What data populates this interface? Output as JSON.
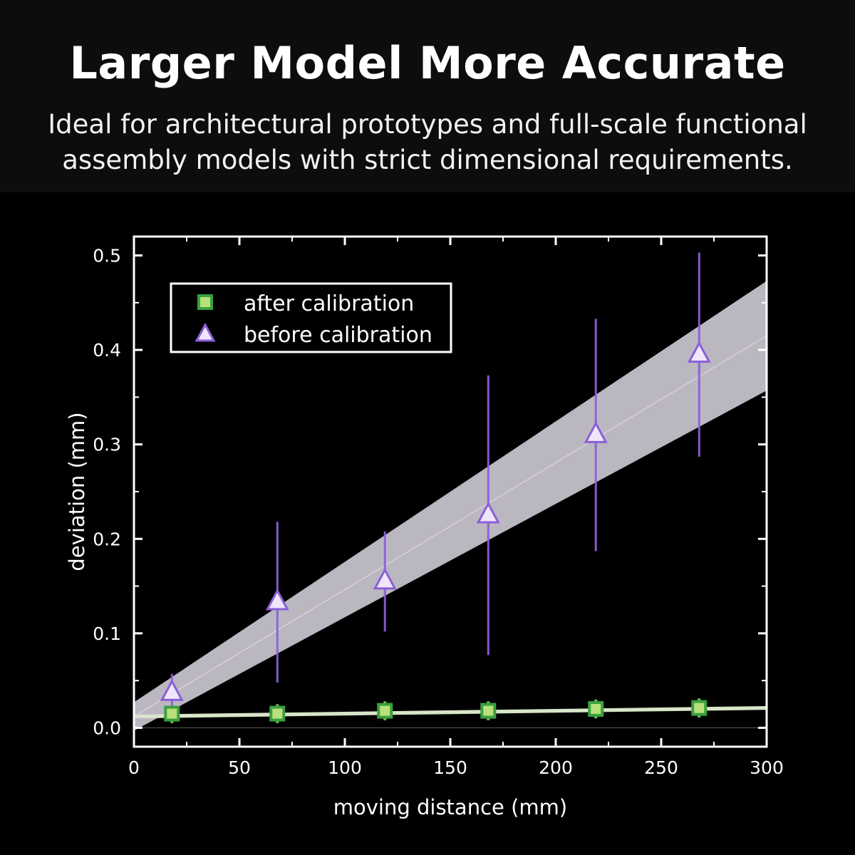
{
  "header": {
    "title": "Larger Model More Accurate",
    "subtitle_line1": "Ideal for architectural prototypes and full-scale functional",
    "subtitle_line2": "assembly models with strict dimensional requirements."
  },
  "chart_data": {
    "type": "scatter",
    "xlabel": "moving distance (mm)",
    "ylabel": "deviation (mm)",
    "xlim": [
      0,
      300
    ],
    "ylim": [
      -0.02,
      0.52
    ],
    "xticks": [
      0,
      50,
      100,
      150,
      200,
      250,
      300
    ],
    "yticks": [
      0.0,
      0.1,
      0.2,
      0.3,
      0.4,
      0.5
    ],
    "xtick_labels": [
      "0",
      "50",
      "100",
      "150",
      "200",
      "250",
      "300"
    ],
    "ytick_labels": [
      "0.0",
      "0.1",
      "0.2",
      "0.3",
      "0.4",
      "0.5"
    ],
    "grid": false,
    "legend_position": "top-left",
    "series": [
      {
        "name": "after calibration",
        "marker": "square",
        "color": "#7fcf5a",
        "x": [
          18,
          68,
          119,
          168,
          219,
          268
        ],
        "y": [
          0.015,
          0.015,
          0.018,
          0.018,
          0.02,
          0.021
        ],
        "err": [
          0.01,
          0.01,
          0.01,
          0.01,
          0.01,
          0.01
        ],
        "fit": {
          "x": [
            0,
            300
          ],
          "y": [
            0.012,
            0.021
          ],
          "band": [
            0.002,
            0.002
          ]
        },
        "band_color": "#d9e6c8"
      },
      {
        "name": "before calibration",
        "marker": "triangle",
        "color": "#8b5fd6",
        "x": [
          18,
          68,
          119,
          168,
          219,
          268
        ],
        "y": [
          0.037,
          0.133,
          0.155,
          0.225,
          0.31,
          0.395
        ],
        "err": [
          0.02,
          0.085,
          0.053,
          0.148,
          0.123,
          0.108
        ],
        "fit": {
          "x": [
            0,
            300
          ],
          "y": [
            0.012,
            0.415
          ],
          "band": [
            0.015,
            0.058
          ]
        },
        "band_color": "#d5d0dc"
      }
    ]
  }
}
